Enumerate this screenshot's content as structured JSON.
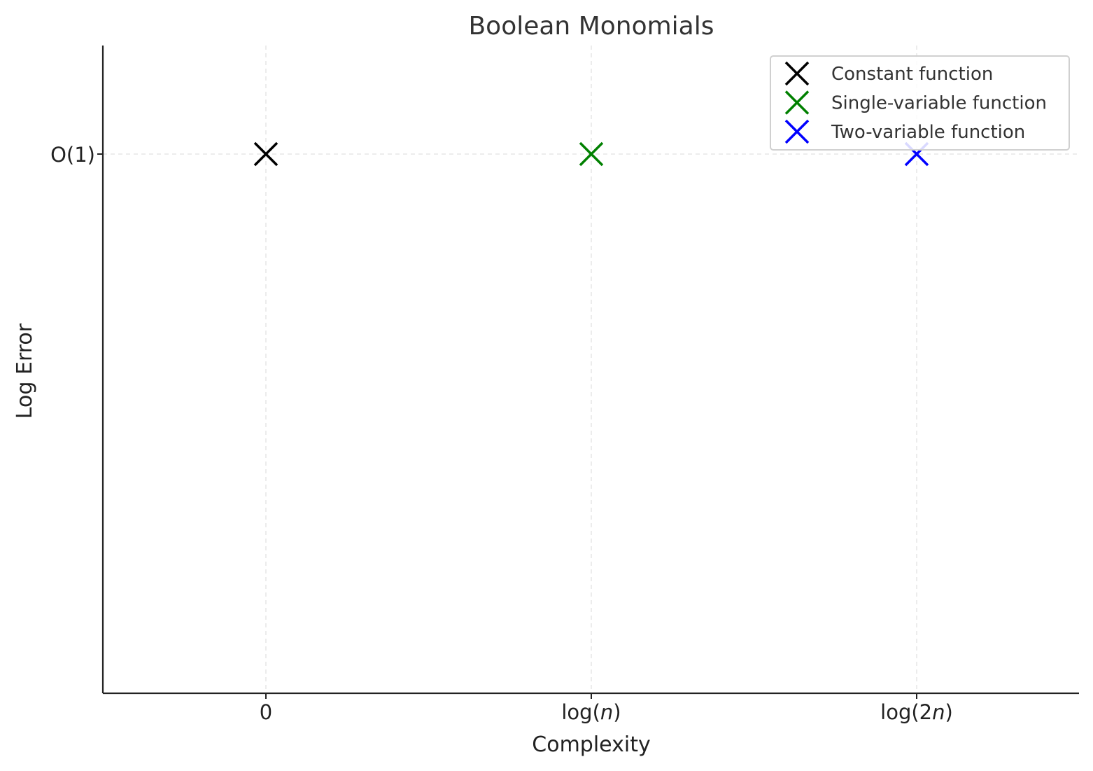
{
  "chart_data": {
    "type": "scatter",
    "title": "Boolean Monomials",
    "xlabel": "Complexity",
    "ylabel": "Log Error",
    "x_ticks": [
      "0",
      "log(n)",
      "log(2n)"
    ],
    "y_ticks": [
      "O(1)"
    ],
    "grid": true,
    "legend_position": "top-right",
    "marker": "x",
    "series": [
      {
        "name": "Constant function",
        "color": "#000000",
        "x": "0",
        "y": "O(1)"
      },
      {
        "name": "Single-variable function",
        "color": "#008000",
        "x": "log(n)",
        "y": "O(1)"
      },
      {
        "name": "Two-variable function",
        "color": "#0000ff",
        "x": "log(2n)",
        "y": "O(1)"
      }
    ]
  }
}
